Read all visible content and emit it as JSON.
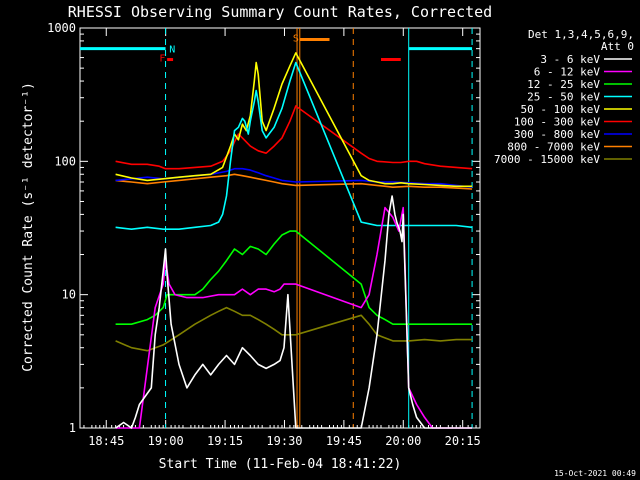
{
  "chart_data": {
    "type": "line",
    "title": "RHESSI Observing Summary Count Rates, Corrected",
    "ylabel": "Corrected Count Rate (s⁻¹ detector⁻¹)",
    "xlabel": "Start Time (11-Feb-04 18:41:22)",
    "timestamp": "15-Oct-2021 00:49",
    "xlim_min": [
      -3,
      98
    ],
    "ylim": [
      1,
      1000
    ],
    "yscale": "log",
    "x_ticks": [
      {
        "min": 3.63,
        "label": "18:45"
      },
      {
        "min": 18.63,
        "label": "19:00"
      },
      {
        "min": 33.63,
        "label": "19:15"
      },
      {
        "min": 48.63,
        "label": "19:30"
      },
      {
        "min": 63.63,
        "label": "19:45"
      },
      {
        "min": 78.63,
        "label": "20:00"
      },
      {
        "min": 93.63,
        "label": "20:15"
      }
    ],
    "y_ticks": [
      {
        "value": 1,
        "label": "1"
      },
      {
        "value": 10,
        "label": "10"
      },
      {
        "value": 100,
        "label": "100"
      },
      {
        "value": 1000,
        "label": "1000"
      }
    ],
    "legend_header": [
      "Det 1,3,4,5,6,9,",
      "Att 0"
    ],
    "legend_position": "right",
    "series": [
      {
        "name": "3 - 6 keV",
        "color": "#ffffff",
        "values": []
      },
      {
        "name": "6 - 12 keV",
        "color": "#ff00ff",
        "values": []
      },
      {
        "name": "12 - 25 keV",
        "color": "#00ff00",
        "values": []
      },
      {
        "name": "25 - 50 keV",
        "color": "#00ffff",
        "values": []
      },
      {
        "name": "50 - 100 keV",
        "color": "#ffff00",
        "values": []
      },
      {
        "name": "100 - 300 keV",
        "color": "#ff0000",
        "values": []
      },
      {
        "name": "300 - 800 keV",
        "color": "#0000ff",
        "values": []
      },
      {
        "name": "800 - 7000 keV",
        "color": "#ff8000",
        "values": []
      },
      {
        "name": "7000 - 15000 keV",
        "color": "#808000",
        "values": []
      }
    ],
    "series_data": {
      "3 - 6 keV": [
        [
          6,
          1
        ],
        [
          8,
          1.1
        ],
        [
          10,
          1
        ],
        [
          11,
          1.2
        ],
        [
          12,
          1.5
        ],
        [
          15,
          2
        ],
        [
          16,
          5
        ],
        [
          17,
          8
        ],
        [
          18,
          15
        ],
        [
          18.6,
          22
        ],
        [
          19,
          14
        ],
        [
          20,
          6
        ],
        [
          22,
          3
        ],
        [
          24,
          2
        ],
        [
          26,
          2.5
        ],
        [
          28,
          3
        ],
        [
          30,
          2.5
        ],
        [
          32,
          3
        ],
        [
          34,
          3.5
        ],
        [
          36,
          3
        ],
        [
          38,
          4
        ],
        [
          40,
          3.5
        ],
        [
          42,
          3
        ],
        [
          44,
          2.8
        ],
        [
          46,
          3
        ],
        [
          47.5,
          3.2
        ],
        [
          48.5,
          4
        ],
        [
          49.5,
          10
        ],
        [
          51.5,
          1
        ],
        [
          68,
          1
        ],
        [
          70,
          2
        ],
        [
          72,
          5
        ],
        [
          74,
          18
        ],
        [
          75,
          40
        ],
        [
          75.8,
          55
        ],
        [
          76.5,
          40
        ],
        [
          77,
          35
        ],
        [
          77.8,
          30
        ],
        [
          78.3,
          25
        ],
        [
          78.6,
          40
        ],
        [
          80,
          2
        ],
        [
          81,
          1.5
        ],
        [
          82,
          1.2
        ],
        [
          84,
          1
        ],
        [
          96,
          1
        ]
      ],
      "6 - 12 keV": [
        [
          6,
          1
        ],
        [
          12,
          1
        ],
        [
          16,
          8
        ],
        [
          18,
          12
        ],
        [
          18.6,
          18
        ],
        [
          19.5,
          12
        ],
        [
          21,
          10
        ],
        [
          24,
          9.5
        ],
        [
          28,
          9.5
        ],
        [
          32,
          10
        ],
        [
          36,
          10
        ],
        [
          38,
          11
        ],
        [
          40,
          10
        ],
        [
          42,
          11
        ],
        [
          44,
          11
        ],
        [
          46,
          10.5
        ],
        [
          47.5,
          11
        ],
        [
          48.5,
          12
        ],
        [
          51.5,
          12
        ],
        [
          68,
          8
        ],
        [
          70,
          10
        ],
        [
          72,
          20
        ],
        [
          74,
          45
        ],
        [
          76,
          38
        ],
        [
          77.5,
          30
        ],
        [
          78.6,
          45
        ],
        [
          80,
          2
        ],
        [
          82,
          1.5
        ],
        [
          84,
          1.2
        ],
        [
          86,
          1
        ],
        [
          96,
          1
        ]
      ],
      "12 - 25 keV": [
        [
          6,
          6
        ],
        [
          10,
          6
        ],
        [
          14,
          6.5
        ],
        [
          16,
          7
        ],
        [
          18,
          8
        ],
        [
          19,
          10
        ],
        [
          22,
          10
        ],
        [
          26,
          10
        ],
        [
          28,
          11
        ],
        [
          30,
          13
        ],
        [
          32,
          15
        ],
        [
          34,
          18
        ],
        [
          36,
          22
        ],
        [
          38,
          20
        ],
        [
          40,
          23
        ],
        [
          42,
          22
        ],
        [
          44,
          20
        ],
        [
          46,
          24
        ],
        [
          48,
          28
        ],
        [
          50,
          30
        ],
        [
          51.5,
          30
        ],
        [
          68,
          12
        ],
        [
          70,
          8
        ],
        [
          72,
          7
        ],
        [
          74,
          6.5
        ],
        [
          76,
          6
        ],
        [
          78,
          6
        ],
        [
          80,
          6
        ],
        [
          84,
          6
        ],
        [
          88,
          6
        ],
        [
          92,
          6
        ],
        [
          96,
          6
        ]
      ],
      "25 - 50 keV": [
        [
          6,
          32
        ],
        [
          10,
          31
        ],
        [
          14,
          32
        ],
        [
          18,
          31
        ],
        [
          22,
          31
        ],
        [
          26,
          32
        ],
        [
          30,
          33
        ],
        [
          32,
          35
        ],
        [
          33,
          40
        ],
        [
          34,
          55
        ],
        [
          35,
          100
        ],
        [
          36,
          170
        ],
        [
          37,
          180
        ],
        [
          38,
          210
        ],
        [
          38.6,
          200
        ],
        [
          39.5,
          160
        ],
        [
          40,
          200
        ],
        [
          41,
          280
        ],
        [
          41.5,
          340
        ],
        [
          42,
          280
        ],
        [
          43,
          170
        ],
        [
          44,
          150
        ],
        [
          46,
          180
        ],
        [
          48,
          250
        ],
        [
          50,
          400
        ],
        [
          51.5,
          550
        ],
        [
          68,
          35
        ],
        [
          70,
          34
        ],
        [
          72,
          33
        ],
        [
          74,
          33
        ],
        [
          78,
          33
        ],
        [
          80,
          33
        ],
        [
          84,
          33
        ],
        [
          88,
          33
        ],
        [
          92,
          33
        ],
        [
          96,
          32
        ]
      ],
      "50 - 100 keV": [
        [
          6,
          80
        ],
        [
          10,
          75
        ],
        [
          14,
          72
        ],
        [
          18,
          74
        ],
        [
          22,
          76
        ],
        [
          26,
          78
        ],
        [
          30,
          80
        ],
        [
          33,
          90
        ],
        [
          35,
          130
        ],
        [
          36,
          160
        ],
        [
          37,
          145
        ],
        [
          38,
          190
        ],
        [
          39,
          170
        ],
        [
          40,
          220
        ],
        [
          41,
          400
        ],
        [
          41.5,
          550
        ],
        [
          42,
          450
        ],
        [
          43,
          200
        ],
        [
          44,
          170
        ],
        [
          46,
          250
        ],
        [
          48,
          380
        ],
        [
          50,
          520
        ],
        [
          51.5,
          650
        ],
        [
          68,
          78
        ],
        [
          70,
          72
        ],
        [
          72,
          70
        ],
        [
          74,
          68
        ],
        [
          76,
          68
        ],
        [
          78,
          69
        ],
        [
          80,
          68
        ],
        [
          84,
          67
        ],
        [
          88,
          66
        ],
        [
          92,
          65
        ],
        [
          96,
          65
        ]
      ],
      "100 - 300 keV": [
        [
          6,
          100
        ],
        [
          10,
          95
        ],
        [
          14,
          95
        ],
        [
          17,
          92
        ],
        [
          18.6,
          88
        ],
        [
          22,
          88
        ],
        [
          26,
          90
        ],
        [
          30,
          92
        ],
        [
          33,
          100
        ],
        [
          35,
          120
        ],
        [
          36,
          140
        ],
        [
          37,
          160
        ],
        [
          38,
          150
        ],
        [
          40,
          130
        ],
        [
          42,
          120
        ],
        [
          44,
          115
        ],
        [
          46,
          130
        ],
        [
          48,
          150
        ],
        [
          50,
          200
        ],
        [
          51.5,
          260
        ],
        [
          68,
          115
        ],
        [
          70,
          105
        ],
        [
          72,
          100
        ],
        [
          76,
          98
        ],
        [
          78,
          98
        ],
        [
          80,
          100
        ],
        [
          82,
          100
        ],
        [
          84,
          96
        ],
        [
          88,
          92
        ],
        [
          92,
          90
        ],
        [
          96,
          88
        ]
      ],
      "300 - 800 keV": [
        [
          6,
          72
        ],
        [
          10,
          74
        ],
        [
          14,
          76
        ],
        [
          18,
          74
        ],
        [
          22,
          76
        ],
        [
          26,
          78
        ],
        [
          30,
          80
        ],
        [
          34,
          84
        ],
        [
          36,
          88
        ],
        [
          38,
          88
        ],
        [
          40,
          86
        ],
        [
          42,
          82
        ],
        [
          44,
          78
        ],
        [
          46,
          75
        ],
        [
          48,
          72
        ],
        [
          51.5,
          70
        ],
        [
          68,
          72
        ],
        [
          72,
          70
        ],
        [
          76,
          70
        ],
        [
          80,
          69
        ],
        [
          84,
          68
        ],
        [
          88,
          68
        ],
        [
          92,
          66
        ],
        [
          96,
          64
        ]
      ],
      "800 - 7000 keV": [
        [
          6,
          72
        ],
        [
          10,
          70
        ],
        [
          14,
          68
        ],
        [
          18,
          70
        ],
        [
          22,
          72
        ],
        [
          26,
          74
        ],
        [
          30,
          76
        ],
        [
          34,
          78
        ],
        [
          36,
          80
        ],
        [
          38,
          78
        ],
        [
          40,
          76
        ],
        [
          42,
          74
        ],
        [
          44,
          72
        ],
        [
          46,
          70
        ],
        [
          48,
          68
        ],
        [
          51.5,
          66
        ],
        [
          68,
          68
        ],
        [
          72,
          66
        ],
        [
          76,
          64
        ],
        [
          80,
          65
        ],
        [
          84,
          64
        ],
        [
          88,
          64
        ],
        [
          92,
          63
        ],
        [
          96,
          62
        ]
      ],
      "7000 - 15000 keV": [
        [
          6,
          4.5
        ],
        [
          10,
          4
        ],
        [
          14,
          3.8
        ],
        [
          18,
          4.2
        ],
        [
          22,
          5
        ],
        [
          26,
          6
        ],
        [
          30,
          7
        ],
        [
          32,
          7.5
        ],
        [
          34,
          8
        ],
        [
          36,
          7.5
        ],
        [
          38,
          7
        ],
        [
          40,
          7
        ],
        [
          42,
          6.5
        ],
        [
          44,
          6
        ],
        [
          46,
          5.5
        ],
        [
          48,
          5
        ],
        [
          51.5,
          5
        ],
        [
          68,
          7
        ],
        [
          70,
          6
        ],
        [
          72,
          5
        ],
        [
          76,
          4.5
        ],
        [
          80,
          4.5
        ],
        [
          84,
          4.6
        ],
        [
          88,
          4.5
        ],
        [
          92,
          4.6
        ],
        [
          96,
          4.6
        ]
      ]
    },
    "flag_bars": [
      {
        "color": "#00ffff",
        "min": [
          -3,
          18.6
        ],
        "value": 700
      },
      {
        "color": "#ff0000",
        "min": [
          19,
          20.5
        ],
        "value": 580
      },
      {
        "color": "#ff8000",
        "min": [
          52.5,
          60
        ],
        "value": 820
      },
      {
        "color": "#ff0000",
        "min": [
          73,
          78
        ],
        "value": 580
      },
      {
        "color": "#00ffff",
        "min": [
          80,
          96
        ],
        "value": 700
      }
    ],
    "flag_labels": [
      {
        "text": "F",
        "min": 17.8,
        "value": 600,
        "color": "#ff0000"
      },
      {
        "text": "N",
        "min": 20.3,
        "value": 700,
        "color": "#00ffff"
      },
      {
        "text": "S",
        "min": 51.5,
        "value": 850,
        "color": "#ff8000"
      }
    ],
    "vertical_lines": [
      {
        "min": 18.6,
        "color": "#00ffff",
        "style": "dashed"
      },
      {
        "min": 51.8,
        "color": "#ff8000",
        "style": "solid"
      },
      {
        "min": 52.5,
        "color": "#ff8000",
        "style": "solid"
      },
      {
        "min": 66,
        "color": "#ff8000",
        "style": "dashed"
      },
      {
        "min": 80,
        "color": "#00ffff",
        "style": "solid"
      },
      {
        "min": 96,
        "color": "#00ffff",
        "style": "dashed"
      }
    ]
  }
}
